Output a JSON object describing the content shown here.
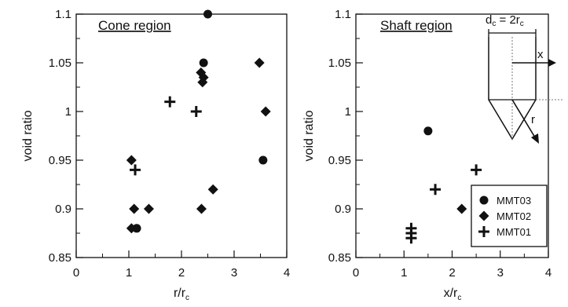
{
  "chart_data": [
    {
      "type": "scatter",
      "title": "Cone region",
      "xlabel": "r/r",
      "xlabel_sub": "c",
      "ylabel": "void ratio",
      "xlim": [
        0,
        4
      ],
      "ylim": [
        0.85,
        1.1
      ],
      "xticks": [
        "0",
        "1",
        "2",
        "3",
        "4"
      ],
      "yticks": [
        "0.85",
        "0.9",
        "0.95",
        "1",
        "1.05",
        "1.1"
      ],
      "grid": false,
      "series": [
        {
          "name": "MMT03",
          "marker": "circle",
          "x": [
            2.5,
            2.42,
            3.55,
            1.15
          ],
          "y": [
            1.1,
            1.05,
            0.95,
            0.88
          ]
        },
        {
          "name": "MMT02",
          "marker": "diamond",
          "x": [
            2.37,
            2.42,
            2.4,
            3.48,
            3.6,
            1.05,
            1.1,
            1.38,
            1.05,
            2.38,
            2.6
          ],
          "y": [
            1.04,
            1.035,
            1.03,
            1.05,
            1.0,
            0.95,
            0.9,
            0.9,
            0.88,
            0.9,
            0.92
          ]
        },
        {
          "name": "MMT01",
          "marker": "plus",
          "x": [
            1.78,
            2.28,
            1.12
          ],
          "y": [
            1.01,
            1.0,
            0.94
          ]
        }
      ]
    },
    {
      "type": "scatter",
      "title": "Shaft region",
      "xlabel": "x/r",
      "xlabel_sub": "c",
      "ylabel": "void ratio",
      "xlim": [
        0,
        4
      ],
      "ylim": [
        0.85,
        1.1
      ],
      "xticks": [
        "0",
        "1",
        "2",
        "3",
        "4"
      ],
      "yticks": [
        "0.85",
        "0.9",
        "0.95",
        "1",
        "1.05",
        "1.1"
      ],
      "grid": false,
      "legend": "bottom-right",
      "series": [
        {
          "name": "MMT03",
          "marker": "circle",
          "x": [
            1.5
          ],
          "y": [
            0.98
          ]
        },
        {
          "name": "MMT02",
          "marker": "diamond",
          "x": [
            2.2
          ],
          "y": [
            0.9
          ]
        },
        {
          "name": "MMT01",
          "marker": "plus",
          "x": [
            2.5,
            1.65,
            1.15,
            1.15,
            1.15
          ],
          "y": [
            0.94,
            0.92,
            0.88,
            0.875,
            0.87
          ]
        }
      ]
    }
  ],
  "sketch": {
    "dimension_left": "d",
    "dimension_left_sub": "c",
    "dimension_equals": " = 2r",
    "dimension_right_sub": "c",
    "x_label": "x",
    "r_label": "r"
  }
}
